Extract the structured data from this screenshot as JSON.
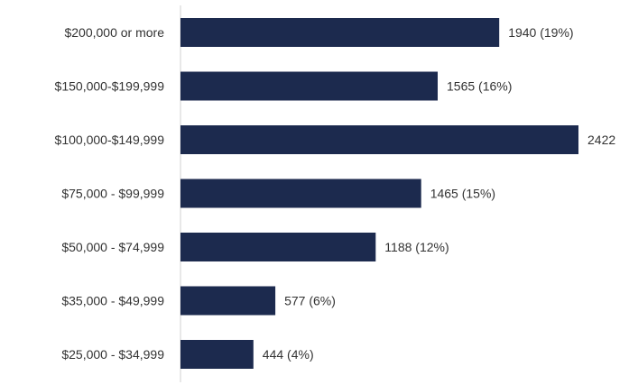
{
  "chart_data": {
    "type": "bar",
    "orientation": "horizontal",
    "categories": [
      "$200,000 or more",
      "$150,000-$199,999",
      "$100,000-$149,999",
      "$75,000 - $99,999",
      "$50,000 - $74,999",
      "$35,000 - $49,999",
      "$25,000 - $34,999"
    ],
    "values": [
      1940,
      1565,
      2422,
      1465,
      1188,
      577,
      444
    ],
    "data_labels": [
      "1940 (19%)",
      "1565 (16%)",
      "2422",
      "1465 (15%)",
      "1188 (12%)",
      "577 (6%)",
      "444 (4%)"
    ],
    "title": "",
    "xlabel": "",
    "ylabel": "",
    "xlim": [
      0,
      2422
    ],
    "grid": false,
    "legend": "none",
    "colors": {
      "bar": "#1c2a4e"
    }
  }
}
